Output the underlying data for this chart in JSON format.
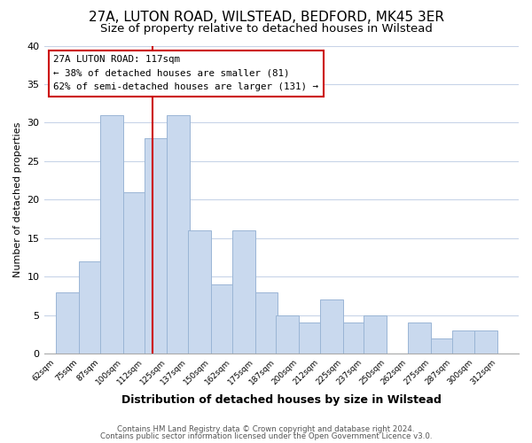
{
  "title": "27A, LUTON ROAD, WILSTEAD, BEDFORD, MK45 3ER",
  "subtitle": "Size of property relative to detached houses in Wilstead",
  "xlabel": "Distribution of detached houses by size in Wilstead",
  "ylabel": "Number of detached properties",
  "bins": [
    "62sqm",
    "75sqm",
    "87sqm",
    "100sqm",
    "112sqm",
    "125sqm",
    "137sqm",
    "150sqm",
    "162sqm",
    "175sqm",
    "187sqm",
    "200sqm",
    "212sqm",
    "225sqm",
    "237sqm",
    "250sqm",
    "262sqm",
    "275sqm",
    "287sqm",
    "300sqm",
    "312sqm"
  ],
  "values": [
    8,
    12,
    31,
    21,
    28,
    31,
    16,
    9,
    16,
    8,
    5,
    4,
    7,
    4,
    5,
    0,
    4,
    2,
    3,
    3
  ],
  "bar_color": "#c9d9ee",
  "bar_edgecolor": "#9ab5d5",
  "highlight_color": "#cc0000",
  "annotation_line1": "27A LUTON ROAD: 117sqm",
  "annotation_line2": "← 38% of detached houses are smaller (81)",
  "annotation_line3": "62% of semi-detached houses are larger (131) →",
  "annotation_box_facecolor": "#ffffff",
  "annotation_box_edgecolor": "#cc0000",
  "ylim": [
    0,
    40
  ],
  "yticks": [
    0,
    5,
    10,
    15,
    20,
    25,
    30,
    35,
    40
  ],
  "grid_color": "#c8d4e8",
  "footer_line1": "Contains HM Land Registry data © Crown copyright and database right 2024.",
  "footer_line2": "Contains public sector information licensed under the Open Government Licence v3.0.",
  "title_fontsize": 11,
  "subtitle_fontsize": 9.5,
  "bin_starts": [
    62,
    75,
    87,
    100,
    112,
    125,
    137,
    150,
    162,
    175,
    187,
    200,
    212,
    225,
    237,
    250,
    262,
    275,
    287,
    300
  ],
  "bin_width": 13,
  "highlight_x": 117,
  "xmin": 55,
  "xmax": 325
}
